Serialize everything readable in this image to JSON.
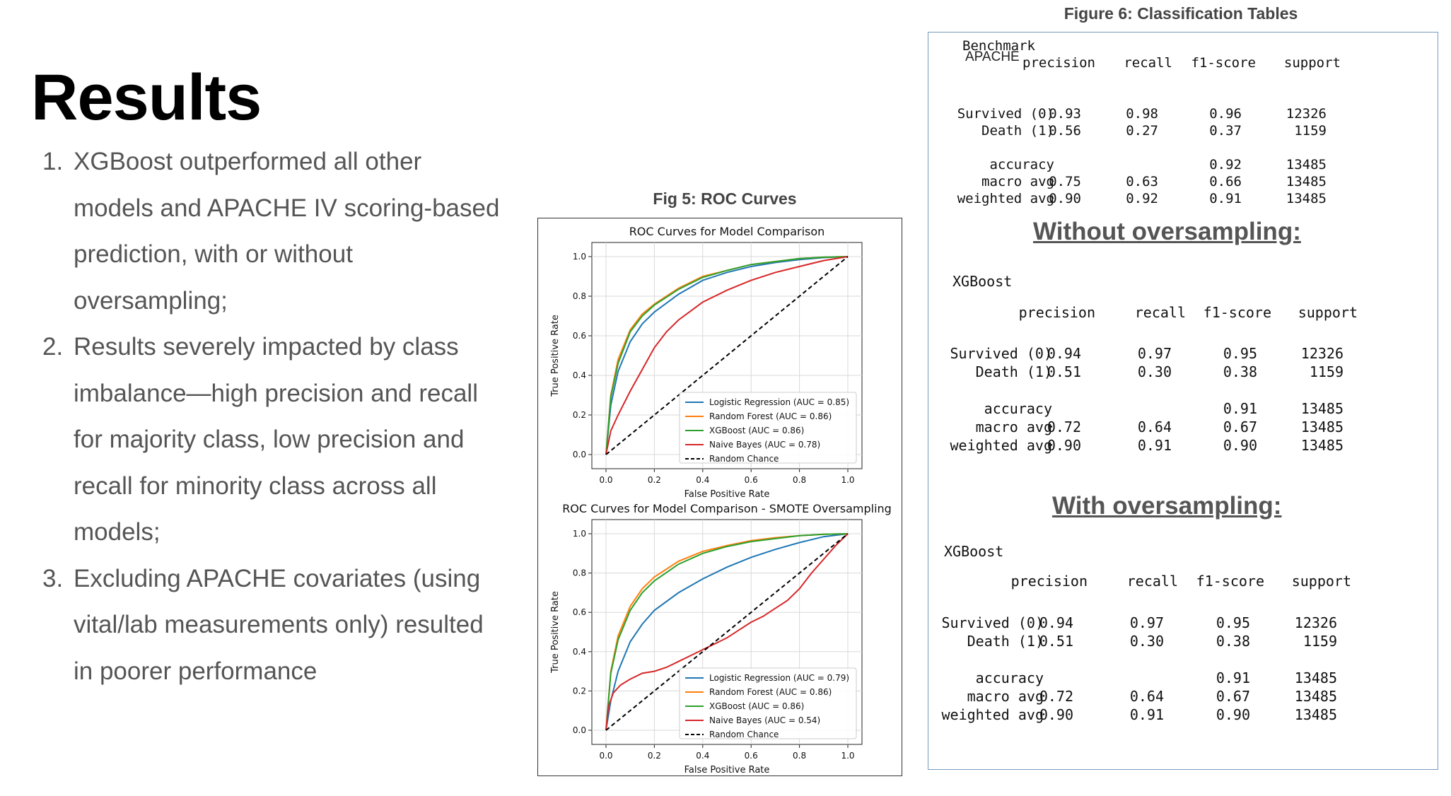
{
  "slide_title": "Results",
  "points": [
    {
      "num": "1.",
      "lines": [
        "XGBoost outperformed all other",
        "models and APACHE IV scoring-based",
        "prediction, with or without",
        "oversampling;"
      ]
    },
    {
      "num": "2.",
      "lines": [
        "Results severely impacted by class",
        "imbalance—high precision and recall",
        "for majority class, low precision and",
        "recall for minority class across all",
        "models;"
      ]
    },
    {
      "num": "3.",
      "lines": [
        "Excluding APACHE covariates (using",
        "vital/lab measurements only) resulted",
        "in poorer performance"
      ]
    }
  ],
  "fig5": {
    "caption": "Fig 5: ROC Curves"
  },
  "fig6": {
    "caption": "Figure 6: Classification Tables",
    "headings": {
      "without": "Without oversampling:",
      "with": "With oversampling:"
    },
    "columns": [
      "precision",
      "recall",
      "f1-score",
      "support"
    ],
    "tables": [
      {
        "model_line1": "Benchmark",
        "model_line2": "APACHE",
        "rows": [
          {
            "label": "Survived (0)",
            "precision": "0.93",
            "recall": "0.98",
            "f1": "0.96",
            "support": "12326"
          },
          {
            "label": "Death (1)",
            "precision": "0.56",
            "recall": "0.27",
            "f1": "0.37",
            "support": "1159"
          },
          {
            "label": "accuracy",
            "precision": "",
            "recall": "",
            "f1": "0.92",
            "support": "13485"
          },
          {
            "label": "macro avg",
            "precision": "0.75",
            "recall": "0.63",
            "f1": "0.66",
            "support": "13485"
          },
          {
            "label": "weighted avg",
            "precision": "0.90",
            "recall": "0.92",
            "f1": "0.91",
            "support": "13485"
          }
        ]
      },
      {
        "model_line1": "XGBoost",
        "rows": [
          {
            "label": "Survived (0)",
            "precision": "0.94",
            "recall": "0.97",
            "f1": "0.95",
            "support": "12326"
          },
          {
            "label": "Death (1)",
            "precision": "0.51",
            "recall": "0.30",
            "f1": "0.38",
            "support": "1159"
          },
          {
            "label": "accuracy",
            "precision": "",
            "recall": "",
            "f1": "0.91",
            "support": "13485"
          },
          {
            "label": "macro avg",
            "precision": "0.72",
            "recall": "0.64",
            "f1": "0.67",
            "support": "13485"
          },
          {
            "label": "weighted avg",
            "precision": "0.90",
            "recall": "0.91",
            "f1": "0.90",
            "support": "13485"
          }
        ]
      },
      {
        "model_line1": "XGBoost",
        "rows": [
          {
            "label": "Survived (0)",
            "precision": "0.94",
            "recall": "0.97",
            "f1": "0.95",
            "support": "12326"
          },
          {
            "label": "Death (1)",
            "precision": "0.51",
            "recall": "0.30",
            "f1": "0.38",
            "support": "1159"
          },
          {
            "label": "accuracy",
            "precision": "",
            "recall": "",
            "f1": "0.91",
            "support": "13485"
          },
          {
            "label": "macro avg",
            "precision": "0.72",
            "recall": "0.64",
            "f1": "0.67",
            "support": "13485"
          },
          {
            "label": "weighted avg",
            "precision": "0.90",
            "recall": "0.91",
            "f1": "0.90",
            "support": "13485"
          }
        ]
      }
    ]
  },
  "chart_data": [
    {
      "type": "line",
      "title": "ROC Curves for Model Comparison",
      "xlabel": "False Positive Rate",
      "ylabel": "True Positive Rate",
      "xlim": [
        0,
        1
      ],
      "ylim": [
        0,
        1
      ],
      "xticks": [
        "0.0",
        "0.2",
        "0.4",
        "0.6",
        "0.8",
        "1.0"
      ],
      "yticks": [
        "0.0",
        "0.2",
        "0.4",
        "0.6",
        "0.8",
        "1.0"
      ],
      "grid": true,
      "legend_position": "lower-right",
      "series": [
        {
          "name": "Logistic Regression (AUC = 0.85)",
          "color": "#1f77b4",
          "x": [
            0,
            0.02,
            0.05,
            0.1,
            0.15,
            0.2,
            0.3,
            0.4,
            0.5,
            0.6,
            0.7,
            0.8,
            0.9,
            1.0
          ],
          "y": [
            0,
            0.25,
            0.42,
            0.57,
            0.66,
            0.72,
            0.81,
            0.88,
            0.92,
            0.95,
            0.97,
            0.985,
            0.995,
            1.0
          ]
        },
        {
          "name": "Random Forest (AUC = 0.86)",
          "color": "#ff7f0e",
          "x": [
            0,
            0.02,
            0.05,
            0.1,
            0.15,
            0.2,
            0.3,
            0.4,
            0.5,
            0.6,
            0.7,
            0.8,
            0.9,
            1.0
          ],
          "y": [
            0,
            0.3,
            0.48,
            0.63,
            0.71,
            0.76,
            0.84,
            0.9,
            0.93,
            0.96,
            0.975,
            0.99,
            0.997,
            1.0
          ]
        },
        {
          "name": "XGBoost (AUC = 0.86)",
          "color": "#2ca02c",
          "x": [
            0,
            0.02,
            0.05,
            0.1,
            0.15,
            0.2,
            0.3,
            0.4,
            0.5,
            0.6,
            0.7,
            0.8,
            0.9,
            1.0
          ],
          "y": [
            0,
            0.29,
            0.46,
            0.62,
            0.7,
            0.755,
            0.835,
            0.895,
            0.93,
            0.96,
            0.975,
            0.99,
            0.997,
            1.0
          ]
        },
        {
          "name": "Naive Bayes (AUC = 0.78)",
          "color": "#d62728",
          "x": [
            0,
            0.02,
            0.05,
            0.1,
            0.15,
            0.2,
            0.25,
            0.3,
            0.4,
            0.5,
            0.6,
            0.7,
            0.8,
            0.9,
            1.0
          ],
          "y": [
            0,
            0.12,
            0.2,
            0.32,
            0.43,
            0.54,
            0.62,
            0.68,
            0.77,
            0.83,
            0.88,
            0.92,
            0.95,
            0.98,
            1.0
          ]
        },
        {
          "name": "Random Chance",
          "color": "#000000",
          "dashed": true,
          "x": [
            0,
            1
          ],
          "y": [
            0,
            1
          ]
        }
      ]
    },
    {
      "type": "line",
      "title": "ROC Curves for Model Comparison - SMOTE Oversampling",
      "xlabel": "False Positive Rate",
      "ylabel": "True Positive Rate",
      "xlim": [
        0,
        1
      ],
      "ylim": [
        0,
        1
      ],
      "xticks": [
        "0.0",
        "0.2",
        "0.4",
        "0.6",
        "0.8",
        "1.0"
      ],
      "yticks": [
        "0.0",
        "0.2",
        "0.4",
        "0.6",
        "0.8",
        "1.0"
      ],
      "grid": true,
      "legend_position": "lower-right",
      "series": [
        {
          "name": "Logistic Regression (AUC = 0.79)",
          "color": "#1f77b4",
          "x": [
            0,
            0.02,
            0.05,
            0.1,
            0.15,
            0.2,
            0.3,
            0.4,
            0.5,
            0.6,
            0.7,
            0.8,
            0.9,
            1.0
          ],
          "y": [
            0,
            0.15,
            0.3,
            0.45,
            0.54,
            0.61,
            0.7,
            0.77,
            0.83,
            0.88,
            0.92,
            0.955,
            0.985,
            1.0
          ]
        },
        {
          "name": "Random Forest (AUC = 0.86)",
          "color": "#ff7f0e",
          "x": [
            0,
            0.02,
            0.05,
            0.1,
            0.15,
            0.2,
            0.3,
            0.4,
            0.5,
            0.6,
            0.7,
            0.8,
            0.9,
            1.0
          ],
          "y": [
            0,
            0.3,
            0.48,
            0.63,
            0.72,
            0.78,
            0.86,
            0.91,
            0.94,
            0.965,
            0.98,
            0.99,
            0.997,
            1.0
          ]
        },
        {
          "name": "XGBoost (AUC = 0.86)",
          "color": "#2ca02c",
          "x": [
            0,
            0.02,
            0.05,
            0.1,
            0.15,
            0.2,
            0.3,
            0.4,
            0.5,
            0.6,
            0.7,
            0.8,
            0.9,
            1.0
          ],
          "y": [
            0,
            0.29,
            0.46,
            0.61,
            0.7,
            0.76,
            0.845,
            0.9,
            0.935,
            0.96,
            0.975,
            0.99,
            0.997,
            1.0
          ]
        },
        {
          "name": "Naive Bayes (AUC = 0.54)",
          "color": "#d62728",
          "x": [
            0,
            0.01,
            0.03,
            0.06,
            0.1,
            0.15,
            0.2,
            0.25,
            0.3,
            0.35,
            0.4,
            0.45,
            0.5,
            0.55,
            0.6,
            0.65,
            0.7,
            0.75,
            0.8,
            0.85,
            0.9,
            0.95,
            1.0
          ],
          "y": [
            0,
            0.12,
            0.19,
            0.23,
            0.26,
            0.29,
            0.3,
            0.32,
            0.35,
            0.38,
            0.41,
            0.44,
            0.47,
            0.51,
            0.55,
            0.58,
            0.62,
            0.66,
            0.72,
            0.8,
            0.87,
            0.94,
            1.0
          ]
        },
        {
          "name": "Random Chance",
          "color": "#000000",
          "dashed": true,
          "x": [
            0,
            1
          ],
          "y": [
            0,
            1
          ]
        }
      ]
    }
  ]
}
